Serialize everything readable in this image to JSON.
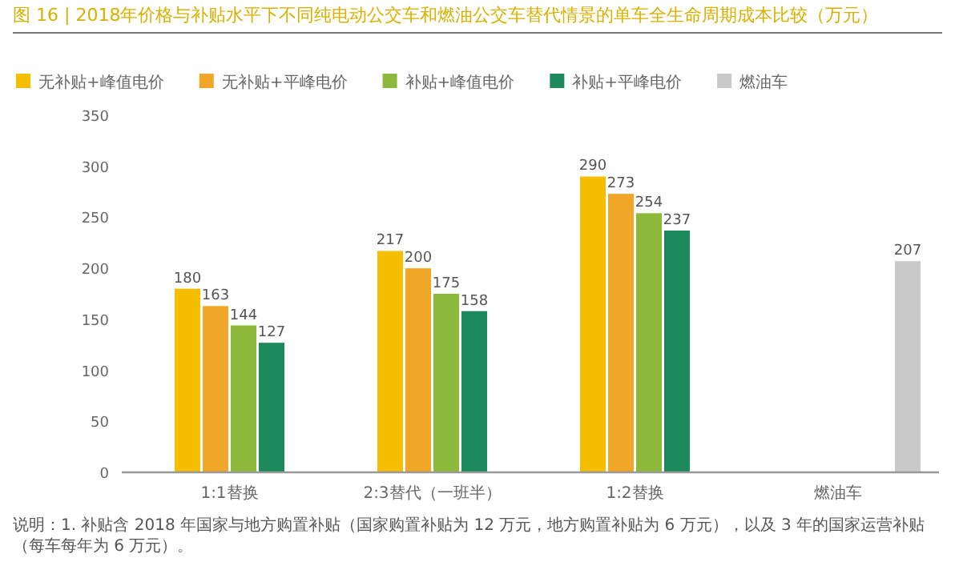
{
  "chart_data": {
    "type": "bar",
    "title": "图 16 | 2018年价格与补贴水平下不同纯电动公交车和燃油公交车替代情景的单车全生命周期成本比较（万元）",
    "categories": [
      "1:1替换",
      "2:3替代（一班半）",
      "1:2替换",
      "燃油车"
    ],
    "series": [
      {
        "name": "无补贴+峰值电价",
        "color": "#f5bf00",
        "values": [
          180,
          217,
          290,
          null
        ]
      },
      {
        "name": "无补贴+平峰电价",
        "color": "#f0a626",
        "values": [
          163,
          200,
          273,
          null
        ]
      },
      {
        "name": "补贴+峰值电价",
        "color": "#8dba3a",
        "values": [
          144,
          175,
          254,
          null
        ]
      },
      {
        "name": "补贴+平峰电价",
        "color": "#1d8a5b",
        "values": [
          127,
          158,
          237,
          null
        ]
      },
      {
        "name": "燃油车",
        "color": "#c9c9c9",
        "values": [
          null,
          null,
          null,
          207
        ]
      }
    ],
    "ylim": [
      0,
      350
    ],
    "yticks": [
      0,
      50,
      100,
      150,
      200,
      250,
      300,
      350
    ],
    "data_labels": true,
    "legend": "top left",
    "annotations": [
      "说明：1. 补贴含 2018 年国家与地方购置补贴（国家购置补贴为 12 万元，地方购置补贴为 6 万元），以及 3 年的国家运营补贴（每车每年为 6 万元）。"
    ]
  }
}
